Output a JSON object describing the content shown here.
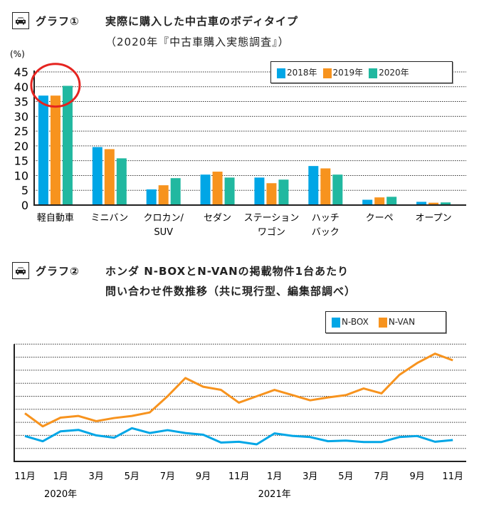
{
  "graph1": {
    "label": "グラフ①",
    "title_line1": "実際に購入した中古車のボディタイプ",
    "title_line2": "（2020年『中古車購入実態調査』）",
    "icon": "car-icon"
  },
  "graph2": {
    "label": "グラフ②",
    "title_line1": "ホンダ N-BOXとN-VANの掲載物件1台あたり",
    "title_line2": "問い合わせ件数推移（共に現行型、編集部調べ）",
    "icon": "car-icon"
  },
  "chart_data": [
    {
      "type": "bar",
      "ylabel": "(%)",
      "ylim": [
        0,
        45
      ],
      "yticks": [
        "0",
        "5",
        "10",
        "15",
        "20",
        "25",
        "30",
        "35",
        "40",
        "45"
      ],
      "categories": [
        "軽自動車",
        "ミニバン",
        "クロカン/\nSUV",
        "セダン",
        "ステーション\nワゴン",
        "ハッチ\nバック",
        "クーペ",
        "オープン"
      ],
      "category_lines": [
        [
          "軽自動車"
        ],
        [
          "ミニバン"
        ],
        [
          "クロカン/",
          "SUV"
        ],
        [
          "セダン"
        ],
        [
          "ステーション",
          "ワゴン"
        ],
        [
          "ハッチ",
          "バック"
        ],
        [
          "クーペ"
        ],
        [
          "オープン"
        ]
      ],
      "series": [
        {
          "name": "2018年",
          "color": "#00a6e6",
          "values": [
            37,
            19.6,
            5.3,
            10.3,
            9.3,
            13.2,
            1.8,
            1.1
          ]
        },
        {
          "name": "2019年",
          "color": "#f7931e",
          "values": [
            37,
            18.9,
            6.7,
            11.3,
            7.4,
            12.4,
            2.6,
            0.8
          ]
        },
        {
          "name": "2020年",
          "color": "#21b8a0",
          "values": [
            40.3,
            15.8,
            9.1,
            9.3,
            8.6,
            10.3,
            2.8,
            0.9
          ]
        }
      ],
      "grid": true,
      "legend_position": "top-right",
      "highlight": "軽自動車",
      "highlight_color": "#e52420"
    },
    {
      "type": "line",
      "ylim": [
        0,
        9
      ],
      "x_tick_labels": [
        "11月",
        "1月",
        "3月",
        "5月",
        "7月",
        "9月",
        "11月",
        "1月",
        "3月",
        "5月",
        "7月",
        "9月",
        "11月"
      ],
      "year_labels": [
        "2020年",
        "2021年"
      ],
      "series": [
        {
          "name": "N-BOX",
          "color": "#00a6e6",
          "values": [
            1.95,
            1.55,
            2.31,
            2.42,
            2.0,
            1.82,
            2.55,
            2.18,
            2.4,
            2.18,
            2.05,
            1.45,
            1.51,
            1.31,
            2.15,
            1.96,
            1.87,
            1.55,
            1.6,
            1.49,
            1.49,
            1.87,
            1.95,
            1.51,
            1.64
          ]
        },
        {
          "name": "N-VAN",
          "color": "#f7931e",
          "values": [
            3.69,
            2.69,
            3.36,
            3.49,
            3.09,
            3.33,
            3.49,
            3.76,
            5.0,
            6.4,
            5.73,
            5.49,
            4.51,
            5.0,
            5.49,
            5.09,
            4.69,
            4.91,
            5.09,
            5.6,
            5.22,
            6.64,
            7.55,
            8.27,
            7.76
          ]
        }
      ],
      "grid": true,
      "legend_position": "top-right"
    }
  ]
}
